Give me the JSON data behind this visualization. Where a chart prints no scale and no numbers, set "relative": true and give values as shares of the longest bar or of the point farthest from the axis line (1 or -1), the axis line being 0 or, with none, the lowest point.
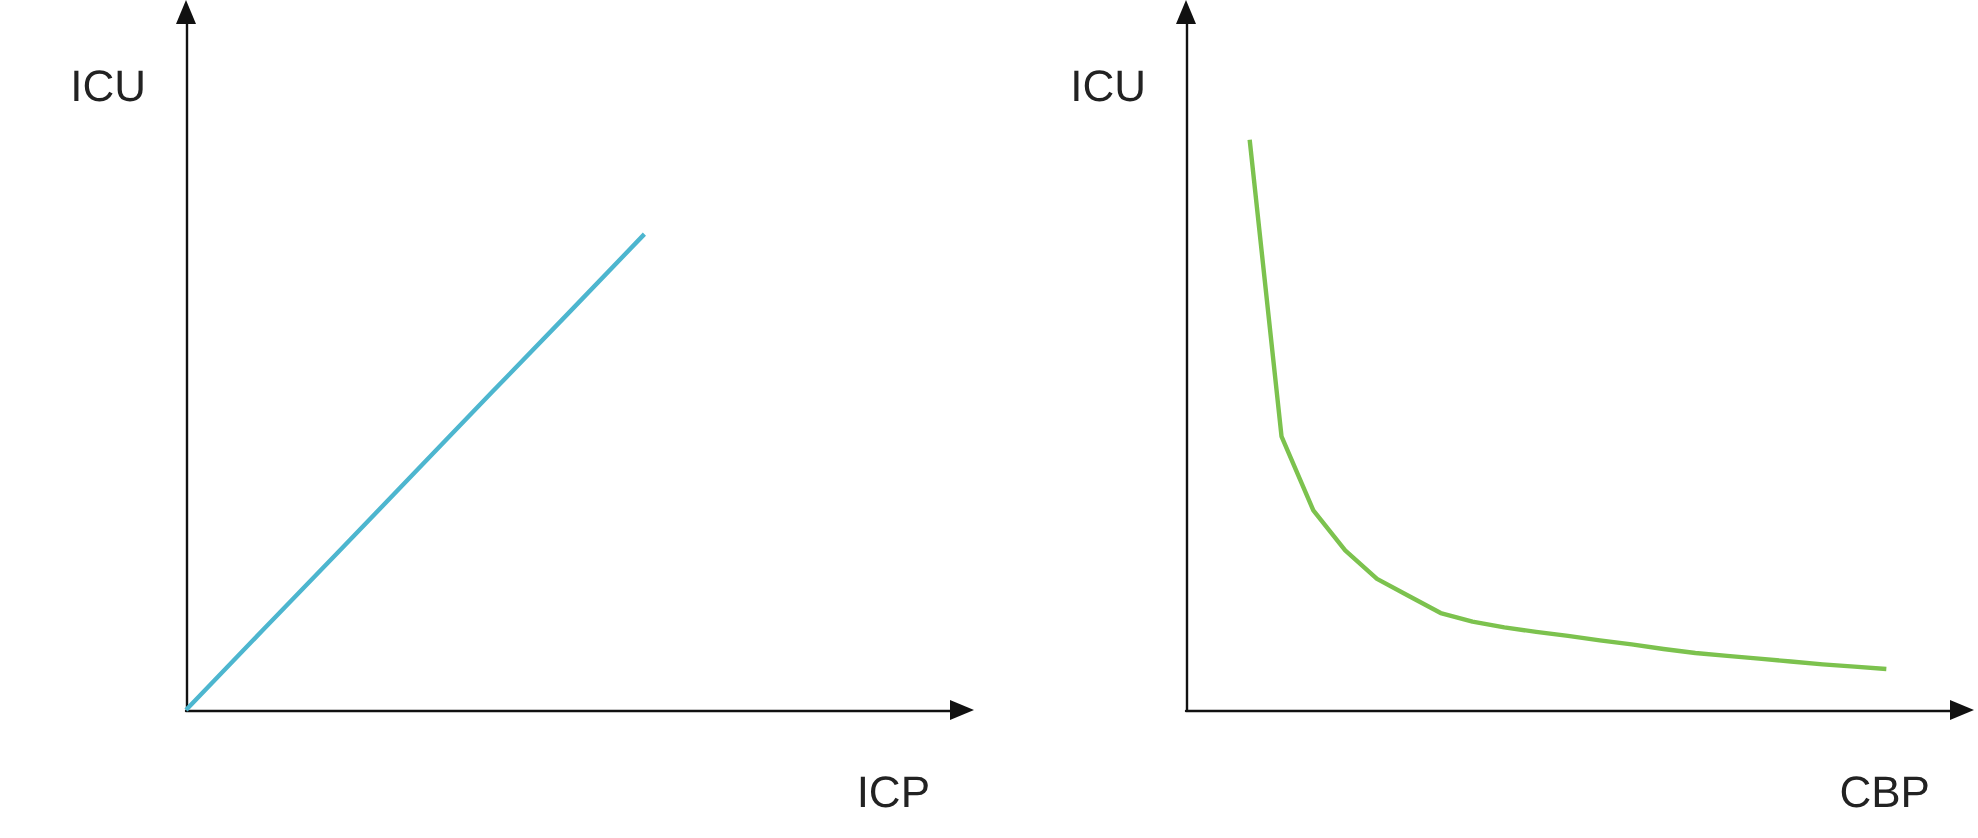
{
  "chart_data": [
    {
      "type": "line",
      "relative": true,
      "xlabel": "ICP",
      "ylabel": "ICU",
      "categories": [
        null,
        null,
        null,
        null,
        null,
        null,
        null,
        null,
        null,
        null,
        null
      ],
      "series": [
        {
          "color": "#4db6cf",
          "values": [
            0,
            0.167,
            0.333,
            0.5,
            0.667,
            0.833,
            1,
            null,
            null,
            null,
            null
          ]
        }
      ],
      "marker": "none"
    },
    {
      "type": "line",
      "relative": true,
      "xlabel": "CBP",
      "ylabel": "ICU",
      "categories": [
        null,
        null,
        null,
        null,
        null,
        null,
        null,
        null,
        null,
        null,
        null,
        null,
        null,
        null,
        null,
        null,
        null,
        null,
        null,
        null,
        null,
        null,
        null,
        null,
        null
      ],
      "series": [
        {
          "color": "#7cc24e",
          "values": [
            null,
            null,
            1,
            0.48,
            0.35,
            0.28,
            0.23,
            0.2,
            0.17,
            0.155,
            0.145,
            0.137,
            0.13,
            0.122,
            0.115,
            0.107,
            0.1,
            0.095,
            0.09,
            0.085,
            0.08,
            0.076,
            0.072,
            null,
            null
          ]
        }
      ],
      "marker": "none"
    }
  ]
}
